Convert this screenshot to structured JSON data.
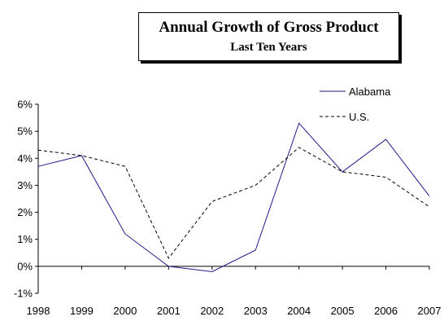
{
  "chart_data": {
    "type": "line",
    "title": "Annual Growth of Gross Product",
    "subtitle": "Last Ten Years",
    "x": [
      "1998",
      "1999",
      "2000",
      "2001",
      "2002",
      "2003",
      "2004",
      "2005",
      "2006",
      "2007"
    ],
    "series": [
      {
        "name": "Alabama",
        "values": [
          3.7,
          4.1,
          1.2,
          0.0,
          -0.2,
          0.6,
          5.3,
          3.5,
          4.7,
          2.6
        ],
        "color": "#1f1a8a",
        "style": "solid"
      },
      {
        "name": "U.S.",
        "values": [
          4.3,
          4.1,
          3.7,
          0.3,
          2.4,
          3.0,
          4.4,
          3.5,
          3.3,
          2.2
        ],
        "color": "#000000",
        "style": "dashed"
      }
    ],
    "yticks": [
      "6%",
      "5%",
      "4%",
      "3%",
      "2%",
      "1%",
      "0%",
      "-1%"
    ],
    "ytick_values": [
      6,
      5,
      4,
      3,
      2,
      1,
      0,
      -1
    ],
    "ylim": [
      -1,
      6
    ],
    "grid": false,
    "legend": "top-right"
  }
}
